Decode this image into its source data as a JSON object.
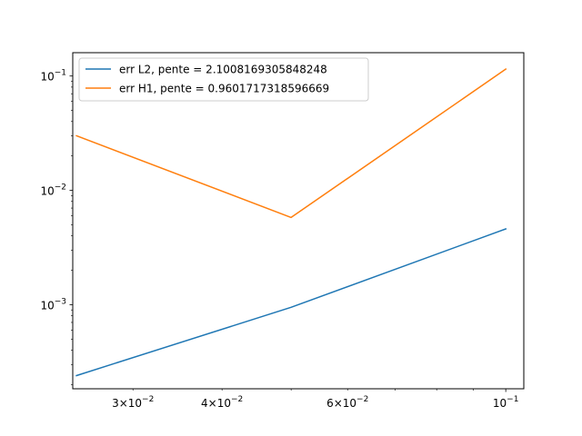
{
  "chart_data": {
    "type": "line",
    "title": "",
    "xlabel": "",
    "ylabel": "",
    "xscale": "log",
    "yscale": "log",
    "xlim": [
      0.0247,
      0.106
    ],
    "ylim": [
      0.000184,
      0.16
    ],
    "grid": false,
    "legend_position": "top-left",
    "x_major_ticks": [
      {
        "value": 0.1,
        "label": "10^-1"
      }
    ],
    "x_minor_tick_labels": [
      {
        "value": 0.03,
        "label": "3×10^-2"
      },
      {
        "value": 0.04,
        "label": "4×10^-2"
      },
      {
        "value": 0.06,
        "label": "6×10^-2"
      }
    ],
    "y_major_ticks": [
      {
        "value": 0.001,
        "label": "10^-3"
      },
      {
        "value": 0.01,
        "label": "10^-2"
      },
      {
        "value": 0.1,
        "label": "10^-1"
      }
    ],
    "series": [
      {
        "name": "err L2, pente = 2.1008169305848248",
        "color": "#1f77b4",
        "x": [
          0.025,
          0.05,
          0.1
        ],
        "y": [
          0.00024,
          0.00095,
          0.0046
        ]
      },
      {
        "name": "err H1, pente = 0.9601717318596669",
        "color": "#ff7f0e",
        "x": [
          0.025,
          0.05,
          0.1
        ],
        "y": [
          0.03,
          0.0058,
          0.115
        ]
      }
    ]
  }
}
